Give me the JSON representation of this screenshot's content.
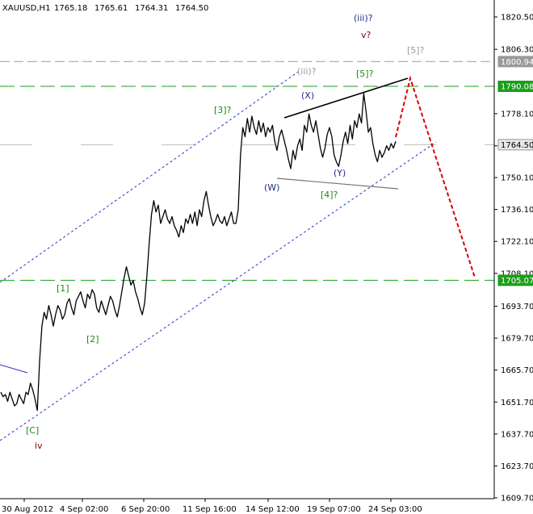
{
  "header": {
    "symbol": "XAUUSD,H1",
    "open": "1765.18",
    "high": "1765.61",
    "low": "1764.31",
    "close": "1764.50"
  },
  "colors": {
    "candle": "#000000",
    "channel": "#3333cc",
    "support_resistance": "#1a9e1a",
    "forecast": "#dd0000",
    "grey_level": "#9a9a9a",
    "current_price": "#bdbdbd",
    "wave_green": "#1a8a1a",
    "wave_blue": "#1f2a8c",
    "wave_red": "#8b0000",
    "wave_grey": "#9a9a9a"
  },
  "chart_data": {
    "type": "line",
    "title": "",
    "xlabel": "",
    "ylabel": "",
    "ylim": [
      1609.7,
      1826
    ],
    "x_ticks": [
      "30 Aug 2012",
      "4 Sep 02:00",
      "6 Sep 20:00",
      "11 Sep 16:00",
      "14 Sep 12:00",
      "19 Sep 07:00",
      "24 Sep 03:00"
    ],
    "y_ticks": [
      "1820.50",
      "1806.30",
      "1778.10",
      "1764.00",
      "1750.10",
      "1736.10",
      "1722.10",
      "1708.10",
      "1693.70",
      "1679.70",
      "1665.70",
      "1651.70",
      "1637.70",
      "1623.70",
      "1609.70"
    ],
    "price_badges": [
      {
        "label": "1800.94",
        "value": 1800.94,
        "color": "#9a9a9a"
      },
      {
        "label": "1790.08",
        "value": 1790.08,
        "color": "#1a9e1a"
      },
      {
        "label": "1764.50",
        "value": 1764.5,
        "color": "#e8e8e8"
      },
      {
        "label": "1705.07",
        "value": 1705.07,
        "color": "#1a9e1a"
      }
    ],
    "price_series": [
      1656,
      1654,
      1655,
      1652,
      1656,
      1653,
      1650,
      1651,
      1655,
      1653,
      1651,
      1656,
      1655,
      1660,
      1657,
      1653,
      1648,
      1670,
      1685,
      1691,
      1688,
      1694,
      1690,
      1685,
      1690,
      1694,
      1692,
      1688,
      1690,
      1695,
      1697,
      1693,
      1690,
      1696,
      1698,
      1700,
      1696,
      1693,
      1699,
      1697,
      1701,
      1699,
      1693,
      1691,
      1696,
      1693,
      1690,
      1694,
      1698,
      1696,
      1692,
      1689,
      1694,
      1700,
      1706,
      1711,
      1707,
      1703,
      1705,
      1700,
      1697,
      1693,
      1690,
      1695,
      1707,
      1721,
      1734,
      1740,
      1735,
      1738,
      1730,
      1733,
      1736,
      1732,
      1730,
      1733,
      1729,
      1727,
      1724,
      1729,
      1726,
      1732,
      1730,
      1734,
      1730,
      1735,
      1729,
      1736,
      1733,
      1740,
      1744,
      1738,
      1733,
      1729,
      1731,
      1734,
      1731,
      1730,
      1733,
      1729,
      1732,
      1735,
      1730,
      1730,
      1736,
      1760,
      1772,
      1768,
      1776,
      1770,
      1777,
      1772,
      1769,
      1775,
      1770,
      1774,
      1768,
      1772,
      1770,
      1773,
      1766,
      1762,
      1768,
      1771,
      1767,
      1763,
      1758,
      1754,
      1762,
      1758,
      1764,
      1767,
      1762,
      1773,
      1770,
      1778,
      1773,
      1770,
      1775,
      1769,
      1763,
      1759,
      1763,
      1769,
      1772,
      1768,
      1760,
      1757,
      1755,
      1760,
      1766,
      1770,
      1765,
      1773,
      1767,
      1775,
      1772,
      1778,
      1774,
      1787,
      1779,
      1770,
      1772,
      1765,
      1760,
      1757,
      1762,
      1759,
      1761,
      1764,
      1762,
      1765,
      1763,
      1766
    ],
    "horizontal_levels": [
      {
        "value": 1800.94,
        "style": "grey-dash"
      },
      {
        "value": 1790.08,
        "style": "green-dash"
      },
      {
        "value": 1764.5,
        "style": "current"
      },
      {
        "value": 1705.07,
        "style": "green-dash"
      }
    ],
    "annotations": [
      {
        "text": "[C]",
        "color": "wave_green"
      },
      {
        "text": "iv",
        "color": "wave_red"
      },
      {
        "text": "[1]",
        "color": "wave_green"
      },
      {
        "text": "[2]",
        "color": "wave_green"
      },
      {
        "text": "[3]?",
        "color": "wave_green"
      },
      {
        "text": "(iii)?",
        "color": "wave_grey"
      },
      {
        "text": "(X)",
        "color": "wave_blue"
      },
      {
        "text": "(W)",
        "color": "wave_blue"
      },
      {
        "text": "(Y)",
        "color": "wave_blue"
      },
      {
        "text": "[4]?",
        "color": "wave_green"
      },
      {
        "text": "[5]?",
        "color": "wave_green"
      },
      {
        "text": "(iii)?",
        "color": "wave_blue"
      },
      {
        "text": "v?",
        "color": "wave_red"
      },
      {
        "text": "[5]?",
        "color": "wave_grey"
      }
    ]
  }
}
